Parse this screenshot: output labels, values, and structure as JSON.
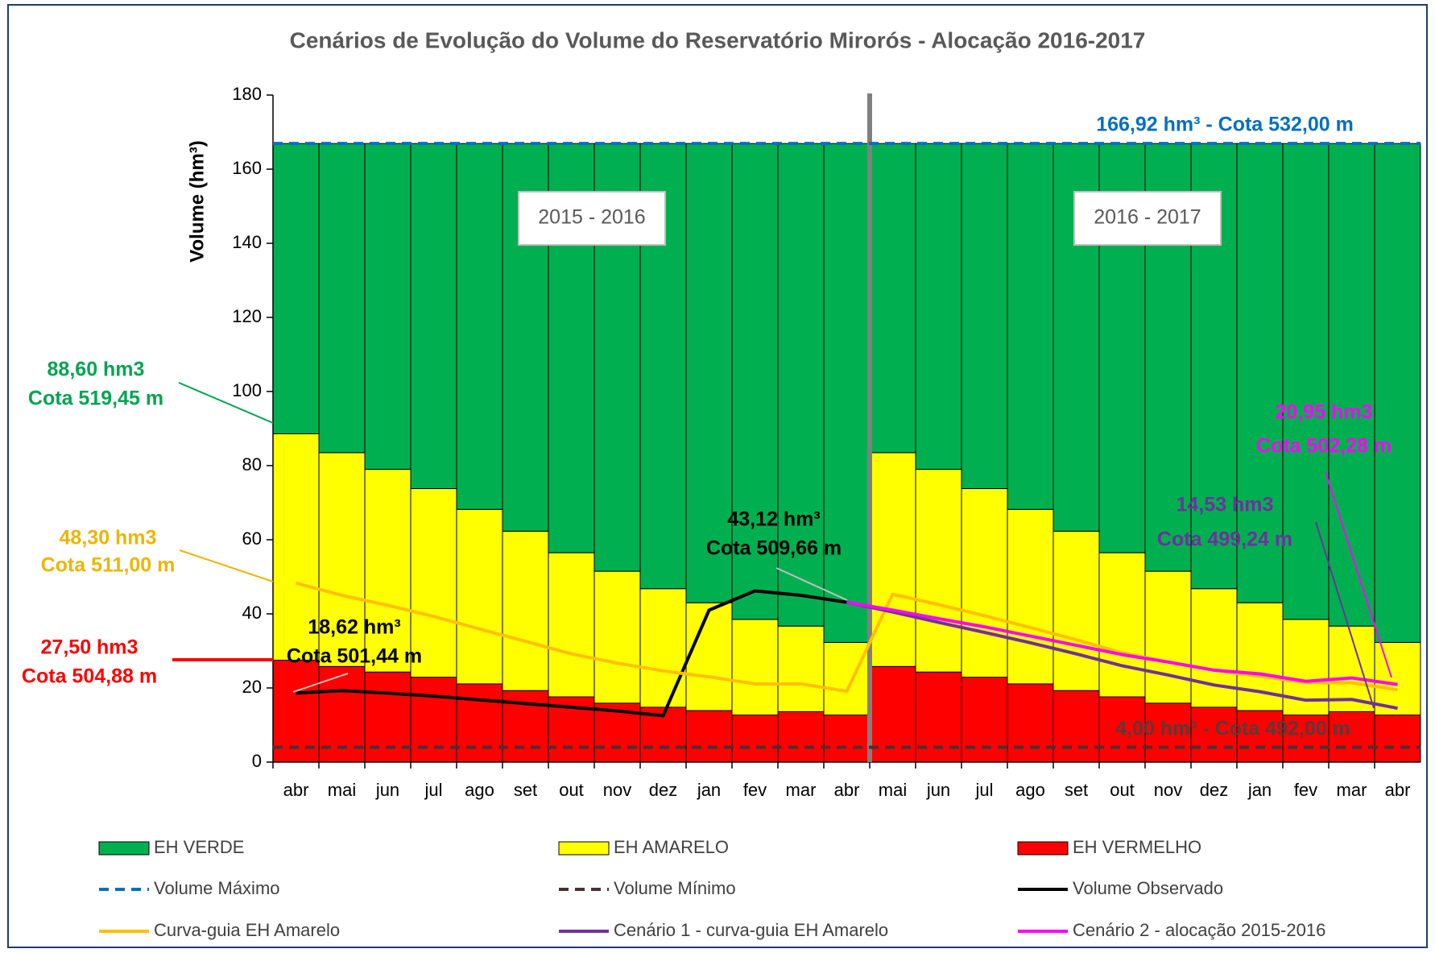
{
  "chart_data": {
    "type": "bar",
    "title": "Cenários de Evolução do Volume do Reservatório Mirorós - Alocação 2016-2017",
    "y_label": "Volume (hm³)",
    "categories": [
      "abr",
      "mai",
      "jun",
      "jul",
      "ago",
      "set",
      "out",
      "nov",
      "dez",
      "jan",
      "fev",
      "mar",
      "abr",
      "mai",
      "jun",
      "jul",
      "ago",
      "set",
      "out",
      "nov",
      "dez",
      "jan",
      "fev",
      "mar",
      "abr"
    ],
    "ylim": [
      0,
      180
    ],
    "yticks": [
      0,
      20,
      40,
      60,
      80,
      100,
      120,
      140,
      160,
      180
    ],
    "period_labels": [
      "2015 - 2016",
      "2016 - 2017"
    ],
    "series": [
      {
        "name": "EH VERDE",
        "type": "bar",
        "color": "#00b050",
        "values": [
          78.32,
          83.42,
          87.92,
          93.12,
          98.72,
          104.62,
          110.42,
          115.42,
          120.12,
          123.92,
          128.42,
          130.22,
          134.62,
          83.42,
          87.92,
          93.12,
          98.72,
          104.62,
          110.42,
          115.42,
          120.12,
          123.92,
          128.42,
          130.22,
          134.62
        ]
      },
      {
        "name": "EH AMARELO",
        "type": "bar",
        "color": "#ffff00",
        "values": [
          61.1,
          57.7,
          54.7,
          50.9,
          47.1,
          43.0,
          38.9,
          35.6,
          32.0,
          29.1,
          25.8,
          23.1,
          19.6,
          57.7,
          54.7,
          50.9,
          47.1,
          43.0,
          38.9,
          35.6,
          32.0,
          29.1,
          25.8,
          23.1,
          19.6
        ]
      },
      {
        "name": "EH VERMELHO",
        "type": "bar",
        "color": "#ff0000",
        "values": [
          27.5,
          25.8,
          24.3,
          22.9,
          21.1,
          19.3,
          17.6,
          15.9,
          14.8,
          13.9,
          12.7,
          13.6,
          12.7,
          25.8,
          24.3,
          22.9,
          21.1,
          19.3,
          17.6,
          15.9,
          14.8,
          13.9,
          12.7,
          13.6,
          12.7
        ]
      },
      {
        "name": "Volume Máximo",
        "type": "hline",
        "dashed": true,
        "color": "#0070c0",
        "value": 166.92
      },
      {
        "name": "Volume Mínimo",
        "type": "hline",
        "dashed": true,
        "color": "#4a3030",
        "value": 4
      },
      {
        "name": "Volume Observado",
        "type": "line",
        "color": "#000000",
        "values": [
          18.62,
          19.3,
          18.6,
          17.8,
          16.8,
          15.8,
          14.8,
          13.8,
          12.5,
          41,
          46.2,
          45,
          43.12,
          null,
          null,
          null,
          null,
          null,
          null,
          null,
          null,
          null,
          null,
          null,
          null
        ]
      },
      {
        "name": "Curva-guia EH Amarelo",
        "type": "line",
        "color": "#ffc000",
        "values": [
          48.3,
          45,
          42.3,
          39.3,
          35.9,
          32.6,
          29.2,
          26.7,
          24.6,
          23,
          21.1,
          21.1,
          19.1,
          45.3,
          42.5,
          39.5,
          36.3,
          33,
          29.5,
          27,
          24.8,
          23.2,
          21.4,
          21.4,
          19.5
        ]
      },
      {
        "name": "Cenário 1 - curva-guia EH Amarelo",
        "type": "line",
        "color": "#7030a0",
        "values": [
          null,
          null,
          null,
          null,
          null,
          null,
          null,
          null,
          null,
          null,
          null,
          null,
          43.12,
          40.5,
          37.7,
          35,
          32.2,
          29.2,
          26,
          23.5,
          20.8,
          19,
          16.7,
          16.9,
          14.53
        ]
      },
      {
        "name": "Cenário 2 - alocação 2015-2016",
        "type": "line",
        "color": "#ff00ff",
        "values": [
          null,
          null,
          null,
          null,
          null,
          null,
          null,
          null,
          null,
          null,
          null,
          null,
          43.12,
          41,
          38.7,
          36.5,
          34,
          31.5,
          29,
          27,
          24.8,
          23.8,
          21.8,
          22.7,
          20.95
        ]
      }
    ],
    "annotations": [
      {
        "text": "88,60 hm3",
        "color": "#00a550"
      },
      {
        "text": "Cota 519,45 m",
        "color": "#00a550"
      },
      {
        "text": "48,30 hm3",
        "color": "#f0b400"
      },
      {
        "text": "Cota 511,00 m",
        "color": "#f0b400"
      },
      {
        "text": "27,50 hm3",
        "color": "#ff0000"
      },
      {
        "text": "Cota 504,88 m",
        "color": "#ff0000"
      },
      {
        "text": "18,62 hm³",
        "color": "#000000"
      },
      {
        "text": "Cota 501,44 m",
        "color": "#000000"
      },
      {
        "text": "43,12 hm³",
        "color": "#000000"
      },
      {
        "text": "Cota 509,66 m",
        "color": "#000000"
      },
      {
        "text": "166,92 hm³ - Cota 532,00 m",
        "color": "#0070c0"
      },
      {
        "text": "4,00 hm³ - Cota 492,00 m",
        "color": "#5a3a3a"
      },
      {
        "text": "14,53 hm3",
        "color": "#7030a0"
      },
      {
        "text": "Cota 499,24 m",
        "color": "#7030a0"
      },
      {
        "text": "20,95 hm3",
        "color": "#ff00ff"
      },
      {
        "text": "Cota 502,28 m",
        "color": "#ff00ff"
      }
    ]
  }
}
